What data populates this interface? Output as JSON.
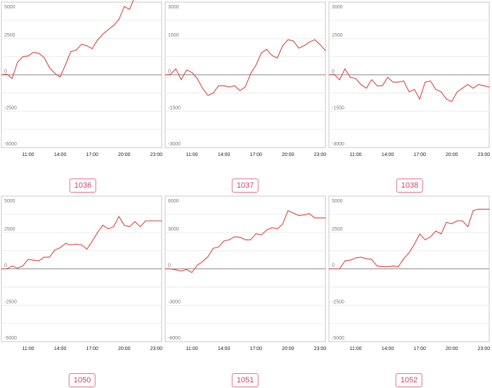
{
  "chart_data": [
    {
      "type": "line",
      "label": "1036",
      "ylim": [
        -5000,
        5000
      ],
      "yticks": [
        5000,
        2500,
        0,
        -2500,
        -5000
      ],
      "xticks": [
        "11:00",
        "14:00",
        "17:00",
        "20:00",
        "23:00"
      ],
      "x_hours": [
        8.5,
        9,
        9.5,
        10,
        10.5,
        11,
        11.5,
        12,
        12.5,
        13,
        13.5,
        14,
        14.5,
        15,
        15.5,
        16,
        16.5,
        17,
        17.5,
        18,
        18.5,
        19,
        19.5,
        20,
        20.5,
        21,
        21.5,
        22,
        22.5,
        23,
        23.5
      ],
      "values": [
        0,
        50,
        -250,
        850,
        1250,
        1300,
        1550,
        1480,
        1200,
        500,
        100,
        -150,
        700,
        1600,
        1700,
        2100,
        2000,
        1800,
        2400,
        2800,
        3100,
        3400,
        3800,
        4700,
        4500,
        5400,
        5500,
        5600,
        5200,
        5600,
        5350
      ],
      "series_color": "#d9534f"
    },
    {
      "type": "line",
      "label": "1037",
      "ylim": [
        -3000,
        3000
      ],
      "yticks": [
        3000,
        1500,
        0,
        -1500,
        -3000
      ],
      "xticks": [
        "11:00",
        "14:00",
        "17:00",
        "20:00",
        "23:00"
      ],
      "x_hours": [
        8.5,
        9,
        9.5,
        10,
        10.5,
        11,
        11.5,
        12,
        12.5,
        13,
        13.5,
        14,
        14.5,
        15,
        15.5,
        16,
        16.5,
        17,
        17.5,
        18,
        18.5,
        19,
        19.5,
        20,
        20.5,
        21,
        21.5,
        22,
        22.5,
        23,
        23.5
      ],
      "values": [
        0,
        20,
        250,
        -200,
        200,
        100,
        -150,
        -550,
        -850,
        -750,
        -450,
        -450,
        -500,
        -450,
        -650,
        -500,
        50,
        400,
        900,
        1050,
        800,
        700,
        1200,
        1450,
        1400,
        1100,
        1200,
        1350,
        1450,
        1250,
        1000
      ],
      "series_color": "#d9534f"
    },
    {
      "type": "line",
      "label": "1038",
      "ylim": [
        -3000,
        3000
      ],
      "yticks": [
        3000,
        1500,
        0,
        -1500,
        -3000
      ],
      "xticks": [
        "11:00",
        "14:00",
        "17:00",
        "20:00",
        "23:00"
      ],
      "x_hours": [
        8.5,
        9,
        9.5,
        10,
        10.5,
        11,
        11.5,
        12,
        12.5,
        13,
        13.5,
        14,
        14.5,
        15,
        15.5,
        16,
        16.5,
        17,
        17.5,
        18,
        18.5,
        19,
        19.5,
        20,
        20.5,
        21,
        21.5,
        22,
        22.5,
        23,
        23.5
      ],
      "values": [
        0,
        20,
        -200,
        250,
        -100,
        -150,
        -400,
        -550,
        -200,
        -450,
        -450,
        -100,
        -300,
        -300,
        -250,
        -700,
        -600,
        -1000,
        -300,
        -250,
        -600,
        -700,
        -1000,
        -1100,
        -700,
        -550,
        -400,
        -550,
        -400,
        -450,
        -500
      ],
      "series_color": "#d9534f"
    },
    {
      "type": "line",
      "label": "1050",
      "ylim": [
        -5000,
        5000
      ],
      "yticks": [
        5000,
        2500,
        0,
        -2500,
        -5000
      ],
      "xticks": [
        "11:00",
        "14:00",
        "17:00",
        "20:00",
        "23:00"
      ],
      "x_hours": [
        8.5,
        9,
        9.5,
        10,
        10.5,
        11,
        11.5,
        12,
        12.5,
        13,
        13.5,
        14,
        14.5,
        15,
        15.5,
        16,
        16.5,
        17,
        17.5,
        18,
        18.5,
        19,
        19.5,
        20,
        20.5,
        21,
        21.5,
        22,
        22.5,
        23,
        23.5
      ],
      "values": [
        0,
        0,
        200,
        50,
        200,
        650,
        600,
        550,
        800,
        800,
        1300,
        1450,
        1750,
        1650,
        1700,
        1650,
        1350,
        1900,
        2500,
        3000,
        2750,
        2900,
        3600,
        3000,
        2900,
        3250,
        2900,
        3300,
        3300,
        3300,
        3300
      ],
      "series_color": "#d9534f"
    },
    {
      "type": "line",
      "label": "1051",
      "ylim": [
        -6000,
        6000
      ],
      "yticks": [
        6000,
        3000,
        0,
        -3000,
        -6000
      ],
      "xticks": [
        "11:00",
        "14:00",
        "17:00",
        "20:00",
        "23:00"
      ],
      "x_hours": [
        8.5,
        9,
        9.5,
        10,
        10.5,
        11,
        11.5,
        12,
        12.5,
        13,
        13.5,
        14,
        14.5,
        15,
        15.5,
        16,
        16.5,
        17,
        17.5,
        18,
        18.5,
        19,
        19.5,
        20,
        20.5,
        21,
        21.5,
        22,
        22.5,
        23,
        23.5
      ],
      "values": [
        0,
        0,
        -80,
        -180,
        -50,
        -300,
        300,
        600,
        1000,
        1700,
        1800,
        2300,
        2400,
        2650,
        2600,
        2400,
        2400,
        2900,
        2800,
        3200,
        3400,
        3300,
        3700,
        4800,
        4600,
        4400,
        4450,
        4550,
        4200,
        4200,
        4200
      ],
      "series_color": "#d9534f"
    },
    {
      "type": "line",
      "label": "1052",
      "ylim": [
        -5000,
        5000
      ],
      "yticks": [
        5000,
        2500,
        0,
        -2500,
        -5000
      ],
      "xticks": [
        "11:00",
        "14:00",
        "17:00",
        "20:00",
        "23:00"
      ],
      "x_hours": [
        8.5,
        9,
        9.5,
        10,
        10.5,
        11,
        11.5,
        12,
        12.5,
        13,
        13.5,
        14,
        14.5,
        15,
        15.5,
        16,
        16.5,
        17,
        17.5,
        18,
        18.5,
        19,
        19.5,
        20,
        20.5,
        21,
        21.5,
        22,
        22.5,
        23,
        23.5
      ],
      "values": [
        0,
        0,
        0,
        550,
        600,
        750,
        800,
        700,
        650,
        200,
        150,
        150,
        200,
        150,
        700,
        1100,
        1700,
        2400,
        2000,
        2200,
        2600,
        2400,
        3200,
        3100,
        3300,
        3300,
        2900,
        4000,
        4100,
        4100,
        4100
      ],
      "series_color": "#d9534f"
    }
  ]
}
